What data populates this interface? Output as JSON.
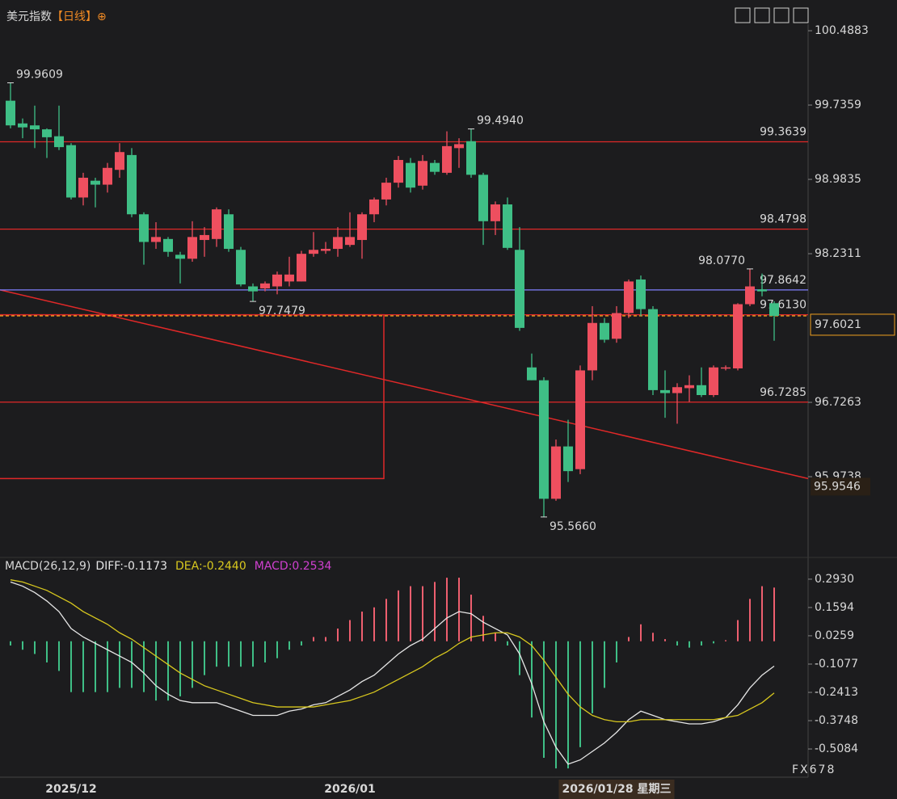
{
  "header": {
    "title": "美元指数",
    "period": "【日线】",
    "icon": "⊕"
  },
  "watermark": "FX678",
  "chart_data": [
    {
      "type": "candlestick",
      "categories": [
        null,
        null,
        null,
        null,
        null,
        "2025/12",
        null,
        null,
        null,
        null,
        null,
        null,
        null,
        null,
        null,
        null,
        null,
        null,
        null,
        null,
        null,
        null,
        null,
        null,
        null,
        null,
        null,
        null,
        "2026/01",
        null,
        null,
        null,
        null,
        null,
        null,
        null,
        null,
        null,
        null,
        null,
        null,
        null,
        null,
        null,
        null,
        null,
        null,
        null,
        null,
        null,
        "2026/01/28 星期三",
        null,
        null,
        null,
        null,
        null,
        null,
        null,
        null,
        null,
        null,
        null,
        null,
        null
      ],
      "open": [
        99.78,
        99.55,
        99.53,
        99.49,
        99.42,
        99.33,
        98.8,
        98.97,
        98.93,
        99.08,
        99.23,
        98.63,
        98.35,
        98.38,
        98.22,
        98.18,
        98.37,
        98.38,
        98.63,
        98.27,
        97.9,
        97.88,
        97.9,
        97.95,
        97.95,
        98.23,
        98.26,
        98.28,
        98.32,
        98.37,
        98.63,
        98.78,
        98.95,
        99.15,
        98.92,
        99.15,
        99.05,
        99.3,
        99.37,
        99.03,
        98.56,
        98.73,
        98.27,
        97.08,
        96.95,
        95.75,
        96.28,
        96.05,
        97.05,
        97.53,
        97.37,
        97.63,
        97.97,
        97.67,
        96.85,
        96.82,
        96.87,
        96.9,
        96.8,
        97.07,
        97.07,
        97.72,
        97.87,
        97.73
      ],
      "high": [
        99.9609,
        99.6,
        99.73,
        99.5,
        99.73,
        99.35,
        99.05,
        99.0,
        99.15,
        99.35,
        99.3,
        98.65,
        98.55,
        98.4,
        98.25,
        98.56,
        98.5,
        98.7,
        98.68,
        98.3,
        97.93,
        97.95,
        98.05,
        98.2,
        98.26,
        98.45,
        98.35,
        98.5,
        98.65,
        98.65,
        98.8,
        99.0,
        99.22,
        99.2,
        99.23,
        99.18,
        99.47,
        99.4,
        99.494,
        99.05,
        98.76,
        98.8,
        98.5,
        97.22,
        96.98,
        96.35,
        96.55,
        97.1,
        97.7,
        97.58,
        97.7,
        97.97,
        98.01,
        97.7,
        97.05,
        96.92,
        97.0,
        97.08,
        97.1,
        97.1,
        97.73,
        98.077,
        98.03,
        97.75
      ],
      "low": [
        99.5,
        99.4,
        99.3,
        99.2,
        99.28,
        98.78,
        98.72,
        98.7,
        98.85,
        99.0,
        98.6,
        98.12,
        98.28,
        98.2,
        97.93,
        98.15,
        98.2,
        98.3,
        98.25,
        97.9,
        97.7479,
        97.85,
        97.82,
        97.9,
        97.95,
        98.2,
        98.23,
        98.2,
        98.3,
        98.18,
        98.55,
        98.72,
        98.9,
        98.85,
        98.88,
        99.03,
        99.03,
        99.1,
        99.0,
        98.32,
        98.42,
        98.27,
        97.45,
        96.95,
        95.566,
        95.73,
        95.92,
        96.0,
        96.95,
        97.33,
        97.33,
        97.58,
        97.6,
        96.8,
        96.57,
        96.51,
        96.73,
        96.78,
        96.78,
        97.05,
        97.05,
        97.7,
        97.8,
        97.35
      ],
      "close": [
        99.53,
        99.51,
        99.49,
        99.41,
        99.31,
        98.8,
        99.0,
        98.93,
        99.1,
        99.26,
        98.63,
        98.35,
        98.4,
        98.25,
        98.18,
        98.4,
        98.42,
        98.68,
        98.28,
        97.92,
        97.85,
        97.93,
        98.02,
        98.02,
        98.23,
        98.27,
        98.28,
        98.4,
        98.4,
        98.63,
        98.78,
        98.95,
        99.18,
        98.9,
        99.17,
        99.06,
        99.32,
        99.34,
        99.03,
        98.56,
        98.73,
        98.29,
        97.48,
        96.95,
        95.75,
        96.28,
        96.03,
        97.05,
        97.53,
        97.36,
        97.63,
        97.95,
        97.67,
        96.85,
        96.82,
        96.88,
        96.9,
        96.8,
        97.08,
        97.08,
        97.72,
        97.9,
        97.85,
        97.6021
      ],
      "up_color": "#ee4f5f",
      "down_color": "#3fbf86",
      "ylim": [
        95.238,
        100.554
      ],
      "yticks": [
        100.4883,
        99.7359,
        98.9835,
        98.2311,
        96.7263,
        95.9738
      ],
      "annotations": [
        {
          "value": 99.9609,
          "label": "99.9609"
        },
        {
          "value": 99.494,
          "label": "99.4940"
        },
        {
          "value": 98.077,
          "label": "98.0770"
        },
        {
          "value": 97.7479,
          "label": "97.7479"
        },
        {
          "value": 95.566,
          "label": "95.5660"
        }
      ],
      "levels": [
        {
          "value": 99.3639,
          "label": "99.3639",
          "color": "#e02828"
        },
        {
          "value": 98.4798,
          "label": "98.4798",
          "color": "#e02828"
        },
        {
          "value": 97.8642,
          "label": "97.8642",
          "color": "#7f7fff"
        },
        {
          "value": 97.613,
          "label": "97.6130",
          "color": "#e02828"
        },
        {
          "value": 96.7285,
          "label": "96.7285",
          "color": "#e02828"
        }
      ],
      "last_price": {
        "value": 97.6021,
        "label": "97.6021",
        "color": "#f0a020"
      },
      "trendline": {
        "start": 97.8642,
        "end": 95.9546,
        "label": "95.9546",
        "color": "#e02828"
      },
      "box": {
        "top": 97.613,
        "bottom": 95.9546,
        "color": "#e02828"
      }
    },
    {
      "type": "macd",
      "title": "MACD(26,12,9)",
      "ylim": [
        -0.634,
        0.327
      ],
      "yticks": [
        {
          "value": 0.293,
          "label": "0.2930"
        },
        0.1594,
        0.0259,
        -0.1077,
        -0.2413,
        -0.3748,
        -0.5084
      ],
      "series": [
        {
          "label": "DIFF:-0.1173",
          "color": "#e6e6e6",
          "values": [
            0.28,
            0.26,
            0.23,
            0.19,
            0.14,
            0.06,
            0.02,
            -0.01,
            -0.04,
            -0.07,
            -0.1,
            -0.15,
            -0.21,
            -0.25,
            -0.28,
            -0.29,
            -0.29,
            -0.29,
            -0.31,
            -0.33,
            -0.35,
            -0.35,
            -0.35,
            -0.33,
            -0.32,
            -0.3,
            -0.29,
            -0.26,
            -0.23,
            -0.19,
            -0.16,
            -0.11,
            -0.06,
            -0.02,
            0.01,
            0.06,
            0.11,
            0.14,
            0.13,
            0.09,
            0.06,
            0.03,
            -0.06,
            -0.2,
            -0.38,
            -0.5,
            -0.58,
            -0.56,
            -0.52,
            -0.48,
            -0.43,
            -0.37,
            -0.33,
            -0.35,
            -0.37,
            -0.38,
            -0.39,
            -0.39,
            -0.38,
            -0.36,
            -0.3,
            -0.22,
            -0.16,
            -0.1173
          ]
        },
        {
          "label": "DEA:-0.2440",
          "color": "#d8c81e",
          "values": [
            0.29,
            0.28,
            0.26,
            0.24,
            0.21,
            0.18,
            0.14,
            0.11,
            0.08,
            0.04,
            0.01,
            -0.03,
            -0.07,
            -0.11,
            -0.15,
            -0.18,
            -0.21,
            -0.23,
            -0.25,
            -0.27,
            -0.29,
            -0.3,
            -0.31,
            -0.31,
            -0.31,
            -0.31,
            -0.3,
            -0.29,
            -0.28,
            -0.26,
            -0.24,
            -0.21,
            -0.18,
            -0.15,
            -0.12,
            -0.08,
            -0.05,
            -0.01,
            0.02,
            0.03,
            0.04,
            0.04,
            0.02,
            -0.02,
            -0.09,
            -0.17,
            -0.25,
            -0.31,
            -0.35,
            -0.37,
            -0.38,
            -0.38,
            -0.37,
            -0.37,
            -0.37,
            -0.37,
            -0.37,
            -0.37,
            -0.37,
            -0.36,
            -0.35,
            -0.32,
            -0.29,
            -0.244
          ]
        },
        {
          "label": "MACD:0.2534",
          "color": "#d040d0",
          "values": [
            -0.02,
            -0.04,
            -0.06,
            -0.1,
            -0.14,
            -0.24,
            -0.24,
            -0.24,
            -0.24,
            -0.22,
            -0.22,
            -0.24,
            -0.28,
            -0.28,
            -0.26,
            -0.22,
            -0.16,
            -0.12,
            -0.12,
            -0.12,
            -0.12,
            -0.1,
            -0.08,
            -0.04,
            -0.02,
            0.02,
            0.02,
            0.06,
            0.1,
            0.14,
            0.16,
            0.2,
            0.24,
            0.26,
            0.26,
            0.28,
            0.3,
            0.3,
            0.22,
            0.12,
            0.04,
            -0.02,
            -0.16,
            -0.36,
            -0.55,
            -0.6,
            -0.6,
            -0.5,
            -0.34,
            -0.22,
            -0.1,
            0.02,
            0.08,
            0.04,
            0.01,
            -0.02,
            -0.03,
            -0.02,
            -0.01,
            0.005,
            0.1,
            0.2,
            0.26,
            0.2534
          ]
        }
      ],
      "hist_up_color": "#ee5f6f",
      "hist_down_color": "#3fbf86"
    }
  ]
}
